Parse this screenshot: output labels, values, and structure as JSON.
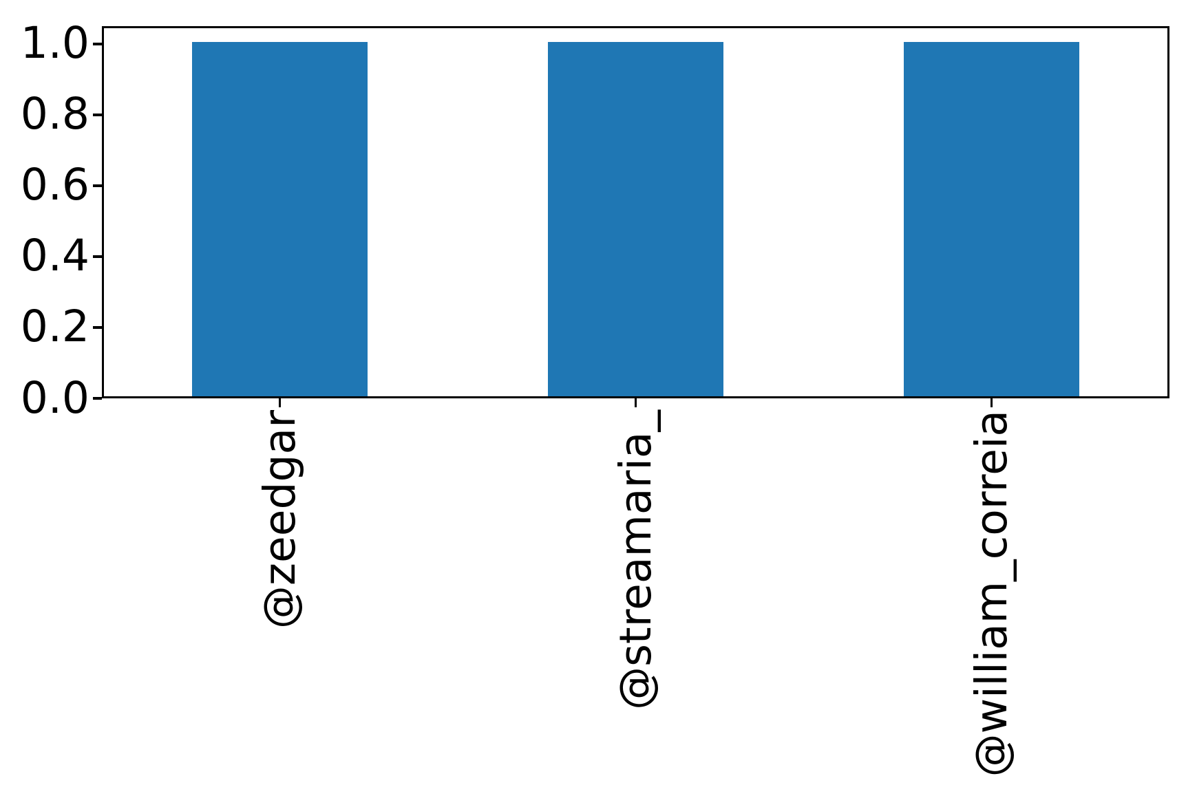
{
  "chart_data": {
    "type": "bar",
    "categories": [
      "@zeedgar",
      "@streamaria_",
      "@william_correia"
    ],
    "values": [
      1.0,
      1.0,
      1.0
    ],
    "title": "",
    "xlabel": "",
    "ylabel": "",
    "ylim": [
      0,
      1.05
    ],
    "yticks": [
      0.0,
      0.2,
      0.4,
      0.6,
      0.8,
      1.0
    ],
    "ytick_labels": [
      "0.0",
      "0.2",
      "0.4",
      "0.6",
      "0.8",
      "1.0"
    ],
    "xtick_label_rotation_deg": 90,
    "grid": false,
    "legend": null,
    "colors": {
      "bar": "#1f77b4",
      "spine": "#000000",
      "tick": "#000000",
      "label_text": "#000000",
      "background": "#ffffff"
    }
  }
}
